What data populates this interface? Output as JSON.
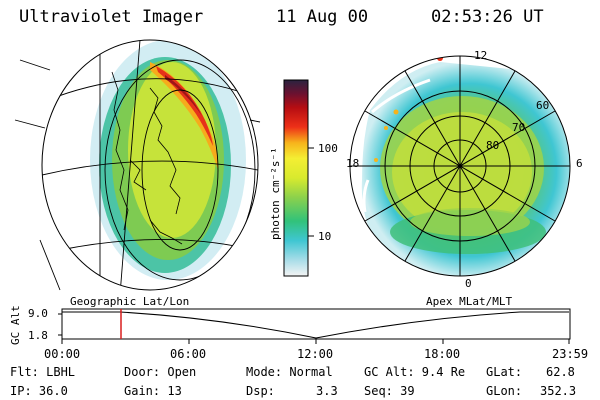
{
  "header": {
    "instrument": "Ultraviolet Imager",
    "date": "11 Aug 00",
    "time": "02:53:26 UT"
  },
  "left_panel": {
    "label": "Geographic Lat/Lon"
  },
  "right_panel": {
    "label": "Apex MLat/MLT",
    "mlt_labels": {
      "top": "12",
      "left": "18",
      "right": "6",
      "bottom": "0"
    },
    "lat_labels": [
      "60",
      "70",
      "80"
    ]
  },
  "colorbar": {
    "unit_label": "photon cm⁻²s⁻¹",
    "ticks": [
      "100",
      "10"
    ],
    "colors": [
      "#f4f4f4",
      "#a9dde8",
      "#3fc6d2",
      "#31c27a",
      "#8bd14c",
      "#d8ea2e",
      "#f4ee33",
      "#f7b31b",
      "#ee3018",
      "#b50d12",
      "#2a2340"
    ]
  },
  "timeline": {
    "axis_label": "GC Alt",
    "y_ticks": [
      "9.0",
      "1.8"
    ],
    "x_ticks": [
      "00:00",
      "06:00",
      "12:00",
      "18:00",
      "23:59"
    ],
    "marker_color": "#d81e1e"
  },
  "footer": {
    "row1": {
      "flt": "Flt: LBHL",
      "door": "Door: Open",
      "mode": "Mode: Normal",
      "gcalt": "GC Alt: 9.4 Re",
      "glat_label": "GLat:",
      "glat_value": "62.8"
    },
    "row2": {
      "ip": "IP: 36.0",
      "gain": "Gain: 13",
      "dsp_label": "Dsp:",
      "dsp_value": "3.3",
      "seq": "Seq: 39",
      "glon_label": "GLon:",
      "glon_value": "352.3"
    }
  }
}
